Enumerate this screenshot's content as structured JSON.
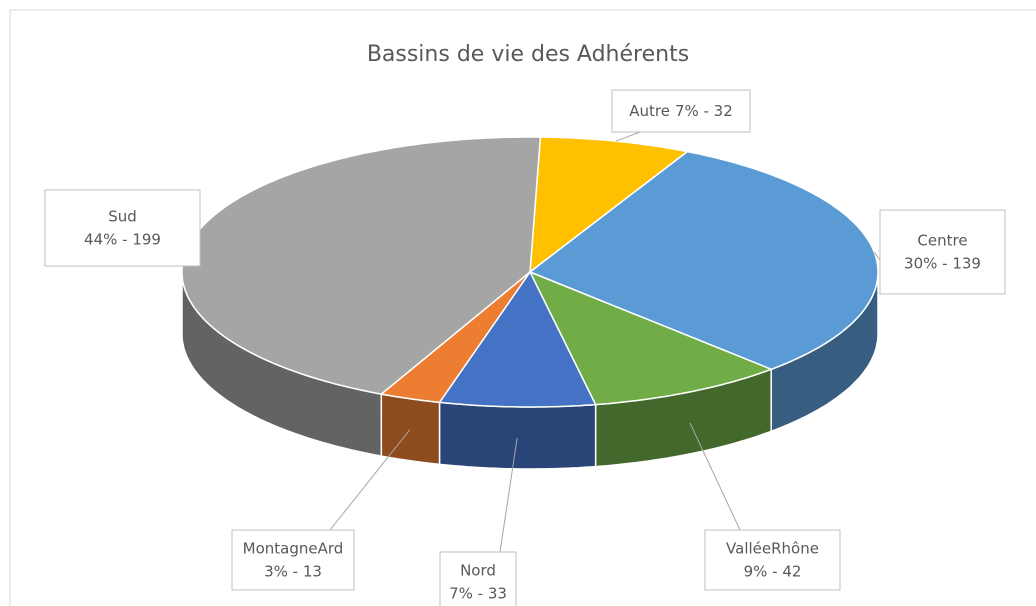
{
  "chart_data": {
    "type": "pie3d",
    "title": "Bassins de vie des Adhérents",
    "categories": [
      "Autre",
      "Centre",
      "ValléeRhône",
      "Nord",
      "MontagneArd",
      "Sud"
    ],
    "values": [
      32,
      139,
      42,
      33,
      13,
      199
    ],
    "value_labels": [
      "7% - 32",
      "30% - 139",
      "9% - 42",
      "7% - 33",
      "3% - 13",
      "44% - 199"
    ],
    "colors": [
      "#ffc000",
      "#5b9bd5",
      "#70ad47",
      "#4472c4",
      "#ed7d31",
      "#a5a5a5"
    ]
  }
}
